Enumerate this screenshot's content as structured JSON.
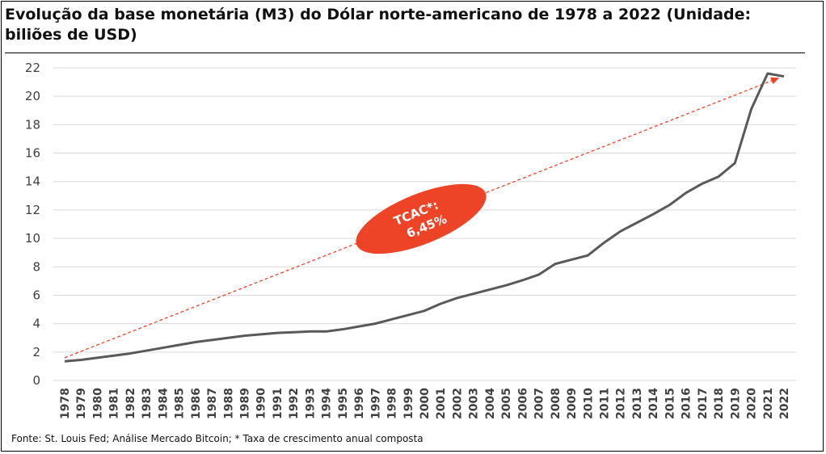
{
  "title": "Evolução da base monetária (M3) do Dólar norte-americano de 1978 a 2022 (Unidade: biliões de USD)",
  "source": "Fonte: St. Louis Fed; Análise Mercado Bitcoin; * Taxa de crescimento anual composta",
  "colors": {
    "line": "#595959",
    "accent": "#ED4427",
    "grid": "#D9D9D9"
  },
  "chart_data": {
    "type": "line",
    "title": "Evolução da base monetária (M3) do Dólar norte-americano de 1978 a 2022 (Unidade: biliões de USD)",
    "xlabel": "",
    "ylabel": "",
    "ylim": [
      0,
      22
    ],
    "yticks": [
      0,
      2,
      4,
      6,
      8,
      10,
      12,
      14,
      16,
      18,
      20,
      22
    ],
    "grid": true,
    "categories": [
      "1978",
      "1979",
      "1980",
      "1981",
      "1982",
      "1983",
      "1984",
      "1985",
      "1986",
      "1987",
      "1988",
      "1989",
      "1990",
      "1991",
      "1992",
      "1993",
      "1994",
      "1995",
      "1996",
      "1997",
      "1998",
      "1999",
      "2000",
      "2001",
      "2002",
      "2003",
      "2004",
      "2005",
      "2006",
      "2007",
      "2008",
      "2009",
      "2010",
      "2011",
      "2012",
      "2013",
      "2014",
      "2015",
      "2016",
      "2017",
      "2018",
      "2019",
      "2020",
      "2021",
      "2022"
    ],
    "series": [
      {
        "name": "M3",
        "values": [
          1.35,
          1.45,
          1.6,
          1.75,
          1.9,
          2.1,
          2.3,
          2.5,
          2.7,
          2.85,
          3.0,
          3.15,
          3.25,
          3.35,
          3.4,
          3.45,
          3.45,
          3.6,
          3.8,
          4.0,
          4.3,
          4.6,
          4.9,
          5.4,
          5.8,
          6.1,
          6.4,
          6.7,
          7.05,
          7.45,
          8.2,
          8.5,
          8.8,
          9.7,
          10.5,
          11.1,
          11.7,
          12.35,
          13.2,
          13.85,
          14.35,
          15.3,
          19.1,
          21.6,
          21.4
        ]
      }
    ],
    "trend": {
      "from": "1978",
      "to": "2022",
      "start_value": 1.6,
      "end_value": 21.3,
      "style": "dashed"
    },
    "annotation": {
      "line1": "TCAC*:",
      "line2": "6,45%"
    }
  }
}
